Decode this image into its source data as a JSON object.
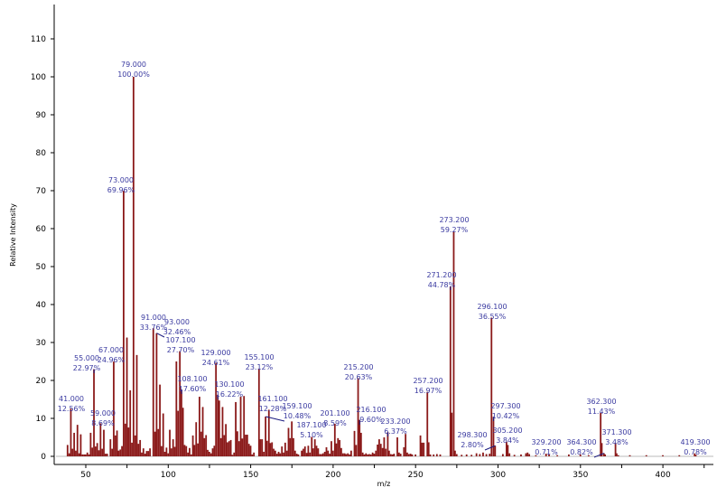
{
  "chart_data": {
    "type": "bar",
    "title": "",
    "xlabel": "m/z",
    "ylabel": "Relative Intensity",
    "xlim": [
      31,
      430
    ],
    "ylim": [
      0,
      119
    ],
    "xticks": [
      50,
      100,
      150,
      200,
      250,
      300,
      350,
      400
    ],
    "yticks": [
      0,
      10,
      20,
      30,
      40,
      50,
      60,
      70,
      80,
      90,
      100,
      110
    ],
    "bar_color": "#8b1a1a",
    "label_color": "#3a3aa0",
    "labeled_peaks": [
      {
        "mz": 41.0,
        "value": 12.56,
        "mz_text": "41.000",
        "pct_text": "12.56%"
      },
      {
        "mz": 55.0,
        "value": 22.97,
        "mz_text": "55.000",
        "pct_text": "22.97%"
      },
      {
        "mz": 59.0,
        "value": 8.69,
        "mz_text": "59.000",
        "pct_text": "8.69%"
      },
      {
        "mz": 67.0,
        "value": 24.96,
        "mz_text": "67.000",
        "pct_text": "24.96%"
      },
      {
        "mz": 73.0,
        "value": 69.96,
        "mz_text": "73.000",
        "pct_text": "69.96%"
      },
      {
        "mz": 79.0,
        "value": 100.0,
        "mz_text": "79.000",
        "pct_text": "100.00%"
      },
      {
        "mz": 91.0,
        "value": 33.76,
        "mz_text": "91.000",
        "pct_text": "33.76%"
      },
      {
        "mz": 93.0,
        "value": 32.46,
        "mz_text": "93.000",
        "pct_text": "32.46%"
      },
      {
        "mz": 107.1,
        "value": 27.7,
        "mz_text": "107.100",
        "pct_text": "27.70%"
      },
      {
        "mz": 108.1,
        "value": 17.6,
        "mz_text": "108.100",
        "pct_text": "17.60%"
      },
      {
        "mz": 129.0,
        "value": 24.61,
        "mz_text": "129.000",
        "pct_text": "24.61%"
      },
      {
        "mz": 130.1,
        "value": 16.22,
        "mz_text": "130.100",
        "pct_text": "16.22%"
      },
      {
        "mz": 155.1,
        "value": 23.12,
        "mz_text": "155.100",
        "pct_text": "23.12%"
      },
      {
        "mz": 161.1,
        "value": 12.28,
        "mz_text": "161.100",
        "pct_text": "12.28%"
      },
      {
        "mz": 159.1,
        "value": 10.48,
        "mz_text": "159.100",
        "pct_text": "10.48%"
      },
      {
        "mz": 187.1,
        "value": 5.1,
        "mz_text": "187.100",
        "pct_text": "5.10%"
      },
      {
        "mz": 201.1,
        "value": 8.59,
        "mz_text": "201.100",
        "pct_text": "8.59%"
      },
      {
        "mz": 215.2,
        "value": 20.63,
        "mz_text": "215.200",
        "pct_text": "20.63%"
      },
      {
        "mz": 216.1,
        "value": 9.6,
        "mz_text": "216.100",
        "pct_text": "9.60%"
      },
      {
        "mz": 233.2,
        "value": 6.37,
        "mz_text": "233.200",
        "pct_text": "6.37%"
      },
      {
        "mz": 257.2,
        "value": 16.97,
        "mz_text": "257.200",
        "pct_text": "16.97%"
      },
      {
        "mz": 271.2,
        "value": 44.78,
        "mz_text": "271.200",
        "pct_text": "44.78%"
      },
      {
        "mz": 273.2,
        "value": 59.27,
        "mz_text": "273.200",
        "pct_text": "59.27%"
      },
      {
        "mz": 296.1,
        "value": 36.55,
        "mz_text": "296.100",
        "pct_text": "36.55%"
      },
      {
        "mz": 297.3,
        "value": 10.42,
        "mz_text": "297.300",
        "pct_text": "10.42%"
      },
      {
        "mz": 298.3,
        "value": 2.8,
        "mz_text": "298.300",
        "pct_text": "2.80%"
      },
      {
        "mz": 305.2,
        "value": 3.84,
        "mz_text": "305.200",
        "pct_text": "3.84%"
      },
      {
        "mz": 329.2,
        "value": 0.71,
        "mz_text": "329.200",
        "pct_text": "0.71%"
      },
      {
        "mz": 362.3,
        "value": 11.43,
        "mz_text": "362.300",
        "pct_text": "11.43%"
      },
      {
        "mz": 364.3,
        "value": 0.82,
        "mz_text": "364.300",
        "pct_text": "0.82%"
      },
      {
        "mz": 371.3,
        "value": 3.48,
        "mz_text": "371.300",
        "pct_text": "3.48%"
      },
      {
        "mz": 419.3,
        "value": 0.78,
        "mz_text": "419.300",
        "pct_text": "0.78%"
      }
    ],
    "minor_peaks": [
      [
        39,
        3
      ],
      [
        40,
        0.8
      ],
      [
        42,
        2
      ],
      [
        43,
        6.2
      ],
      [
        44,
        1.5
      ],
      [
        45,
        8.3
      ],
      [
        46,
        0.8
      ],
      [
        47,
        5.8
      ],
      [
        48,
        0.5
      ],
      [
        49,
        0.5
      ],
      [
        50,
        0.5
      ],
      [
        51,
        1
      ],
      [
        52,
        0.5
      ],
      [
        53,
        6.2
      ],
      [
        54,
        2.3
      ],
      [
        56,
        2.6
      ],
      [
        57,
        3.5
      ],
      [
        58,
        1.6
      ],
      [
        60,
        2
      ],
      [
        61,
        7
      ],
      [
        62,
        0.7
      ],
      [
        63,
        0.7
      ],
      [
        65,
        4.5
      ],
      [
        66,
        2
      ],
      [
        68,
        5.5
      ],
      [
        69,
        6.8
      ],
      [
        70,
        1.5
      ],
      [
        71,
        1.8
      ],
      [
        72,
        2.7
      ],
      [
        74,
        8.6
      ],
      [
        75,
        31.3
      ],
      [
        76,
        7.6
      ],
      [
        77,
        17.4
      ],
      [
        78,
        3.6
      ],
      [
        80,
        5.5
      ],
      [
        81,
        26.7
      ],
      [
        82,
        3.3
      ],
      [
        83,
        4.3
      ],
      [
        84,
        1
      ],
      [
        85,
        2.1
      ],
      [
        86,
        0.7
      ],
      [
        87,
        1.4
      ],
      [
        88,
        1.4
      ],
      [
        89,
        2.1
      ],
      [
        92,
        6.5
      ],
      [
        94,
        7.2
      ],
      [
        95,
        18.9
      ],
      [
        96,
        2.7
      ],
      [
        97,
        11.3
      ],
      [
        98,
        1.2
      ],
      [
        99,
        2.3
      ],
      [
        100,
        0.8
      ],
      [
        101,
        7
      ],
      [
        102,
        2.1
      ],
      [
        103,
        4.5
      ],
      [
        104,
        2.5
      ],
      [
        105,
        25
      ],
      [
        106,
        12
      ],
      [
        109,
        12.8
      ],
      [
        110,
        3
      ],
      [
        111,
        2.7
      ],
      [
        112,
        1
      ],
      [
        113,
        2.2
      ],
      [
        114,
        0.5
      ],
      [
        115,
        5.5
      ],
      [
        116,
        3
      ],
      [
        117,
        9
      ],
      [
        118,
        3.4
      ],
      [
        119,
        15.7
      ],
      [
        120,
        6.5
      ],
      [
        121,
        13
      ],
      [
        122,
        4.8
      ],
      [
        123,
        5.6
      ],
      [
        124,
        1.7
      ],
      [
        125,
        1.2
      ],
      [
        126,
        0.8
      ],
      [
        127,
        2.1
      ],
      [
        128,
        2.8
      ],
      [
        131,
        14.7
      ],
      [
        132,
        4.8
      ],
      [
        133,
        13
      ],
      [
        134,
        5.6
      ],
      [
        135,
        8.5
      ],
      [
        136,
        3.7
      ],
      [
        137,
        4
      ],
      [
        138,
        4.3
      ],
      [
        139,
        0.4
      ],
      [
        140,
        1
      ],
      [
        141,
        14.3
      ],
      [
        142,
        6.6
      ],
      [
        143,
        4
      ],
      [
        144,
        15.7
      ],
      [
        145,
        4.7
      ],
      [
        146,
        15.9
      ],
      [
        147,
        5.7
      ],
      [
        148,
        5.7
      ],
      [
        149,
        3.3
      ],
      [
        150,
        2.8
      ],
      [
        151,
        0.5
      ],
      [
        152,
        1
      ],
      [
        156,
        4.5
      ],
      [
        157,
        4.5
      ],
      [
        158,
        1.2
      ],
      [
        160,
        4.1
      ],
      [
        162,
        3.5
      ],
      [
        163,
        3.7
      ],
      [
        164,
        2
      ],
      [
        165,
        1.5
      ],
      [
        166,
        0.7
      ],
      [
        167,
        1.2
      ],
      [
        168,
        0.8
      ],
      [
        169,
        2.6
      ],
      [
        170,
        1
      ],
      [
        171,
        3.6
      ],
      [
        172,
        1.5
      ],
      [
        173,
        7.5
      ],
      [
        174,
        4.8
      ],
      [
        175,
        9.2
      ],
      [
        176,
        4.8
      ],
      [
        177,
        1.5
      ],
      [
        178,
        0.7
      ],
      [
        179,
        0.5
      ],
      [
        181,
        1.5
      ],
      [
        182,
        2
      ],
      [
        183,
        2.6
      ],
      [
        184,
        0.9
      ],
      [
        185,
        2.8
      ],
      [
        186,
        1
      ],
      [
        188,
        2.1
      ],
      [
        189,
        4.5
      ],
      [
        190,
        2.8
      ],
      [
        191,
        2.1
      ],
      [
        192,
        0.6
      ],
      [
        193,
        0.6
      ],
      [
        194,
        0.8
      ],
      [
        195,
        1.2
      ],
      [
        196,
        2.4
      ],
      [
        197,
        1.5
      ],
      [
        198,
        0.7
      ],
      [
        199,
        4
      ],
      [
        200,
        1.5
      ],
      [
        202,
        3.4
      ],
      [
        203,
        4.8
      ],
      [
        204,
        4.3
      ],
      [
        205,
        2.2
      ],
      [
        206,
        0.8
      ],
      [
        207,
        0.8
      ],
      [
        208,
        0.6
      ],
      [
        209,
        0.8
      ],
      [
        210,
        0.5
      ],
      [
        211,
        1.5
      ],
      [
        213,
        6.7
      ],
      [
        214,
        3
      ],
      [
        217,
        6.2
      ],
      [
        218,
        1
      ],
      [
        219,
        0.5
      ],
      [
        220,
        0.8
      ],
      [
        221,
        0.5
      ],
      [
        222,
        0.6
      ],
      [
        223,
        0.5
      ],
      [
        224,
        1
      ],
      [
        225,
        0.7
      ],
      [
        226,
        1.5
      ],
      [
        227,
        3.1
      ],
      [
        228,
        4.5
      ],
      [
        229,
        3.3
      ],
      [
        230,
        2.2
      ],
      [
        231,
        5
      ],
      [
        232,
        2
      ],
      [
        234,
        1.5
      ],
      [
        235,
        0.6
      ],
      [
        236,
        0.5
      ],
      [
        237,
        0.7
      ],
      [
        239,
        5
      ],
      [
        240,
        1
      ],
      [
        241,
        0.7
      ],
      [
        243,
        2.4
      ],
      [
        244,
        5.9
      ],
      [
        245,
        1
      ],
      [
        246,
        0.6
      ],
      [
        247,
        0.7
      ],
      [
        248,
        0.5
      ],
      [
        250,
        0.5
      ],
      [
        253,
        5.5
      ],
      [
        254,
        3.6
      ],
      [
        255,
        3.6
      ],
      [
        258,
        3.7
      ],
      [
        259,
        0.5
      ],
      [
        261,
        0.5
      ],
      [
        263,
        0.6
      ],
      [
        265,
        0.5
      ],
      [
        272,
        11.5
      ],
      [
        274,
        1.5
      ],
      [
        275,
        0.6
      ],
      [
        278,
        0.4
      ],
      [
        281,
        0.5
      ],
      [
        284,
        0.4
      ],
      [
        287,
        0.8
      ],
      [
        289,
        0.6
      ],
      [
        291,
        1
      ],
      [
        293,
        0.6
      ],
      [
        295,
        0.7
      ],
      [
        303,
        0.6
      ],
      [
        306,
        3
      ],
      [
        307,
        0.8
      ],
      [
        310,
        0.4
      ],
      [
        314,
        0.5
      ],
      [
        317,
        0.8
      ],
      [
        318,
        1
      ],
      [
        319,
        0.6
      ],
      [
        323,
        0.3
      ],
      [
        331,
        0.5
      ],
      [
        336,
        0.3
      ],
      [
        343,
        0.5
      ],
      [
        350,
        0.5
      ],
      [
        355,
        0.3
      ],
      [
        363,
        3.5
      ],
      [
        365,
        0.5
      ],
      [
        372,
        0.8
      ],
      [
        373,
        0.3
      ],
      [
        380,
        0.3
      ],
      [
        390,
        0.3
      ],
      [
        400,
        0.3
      ],
      [
        410,
        0.3
      ],
      [
        420,
        0.4
      ]
    ]
  }
}
